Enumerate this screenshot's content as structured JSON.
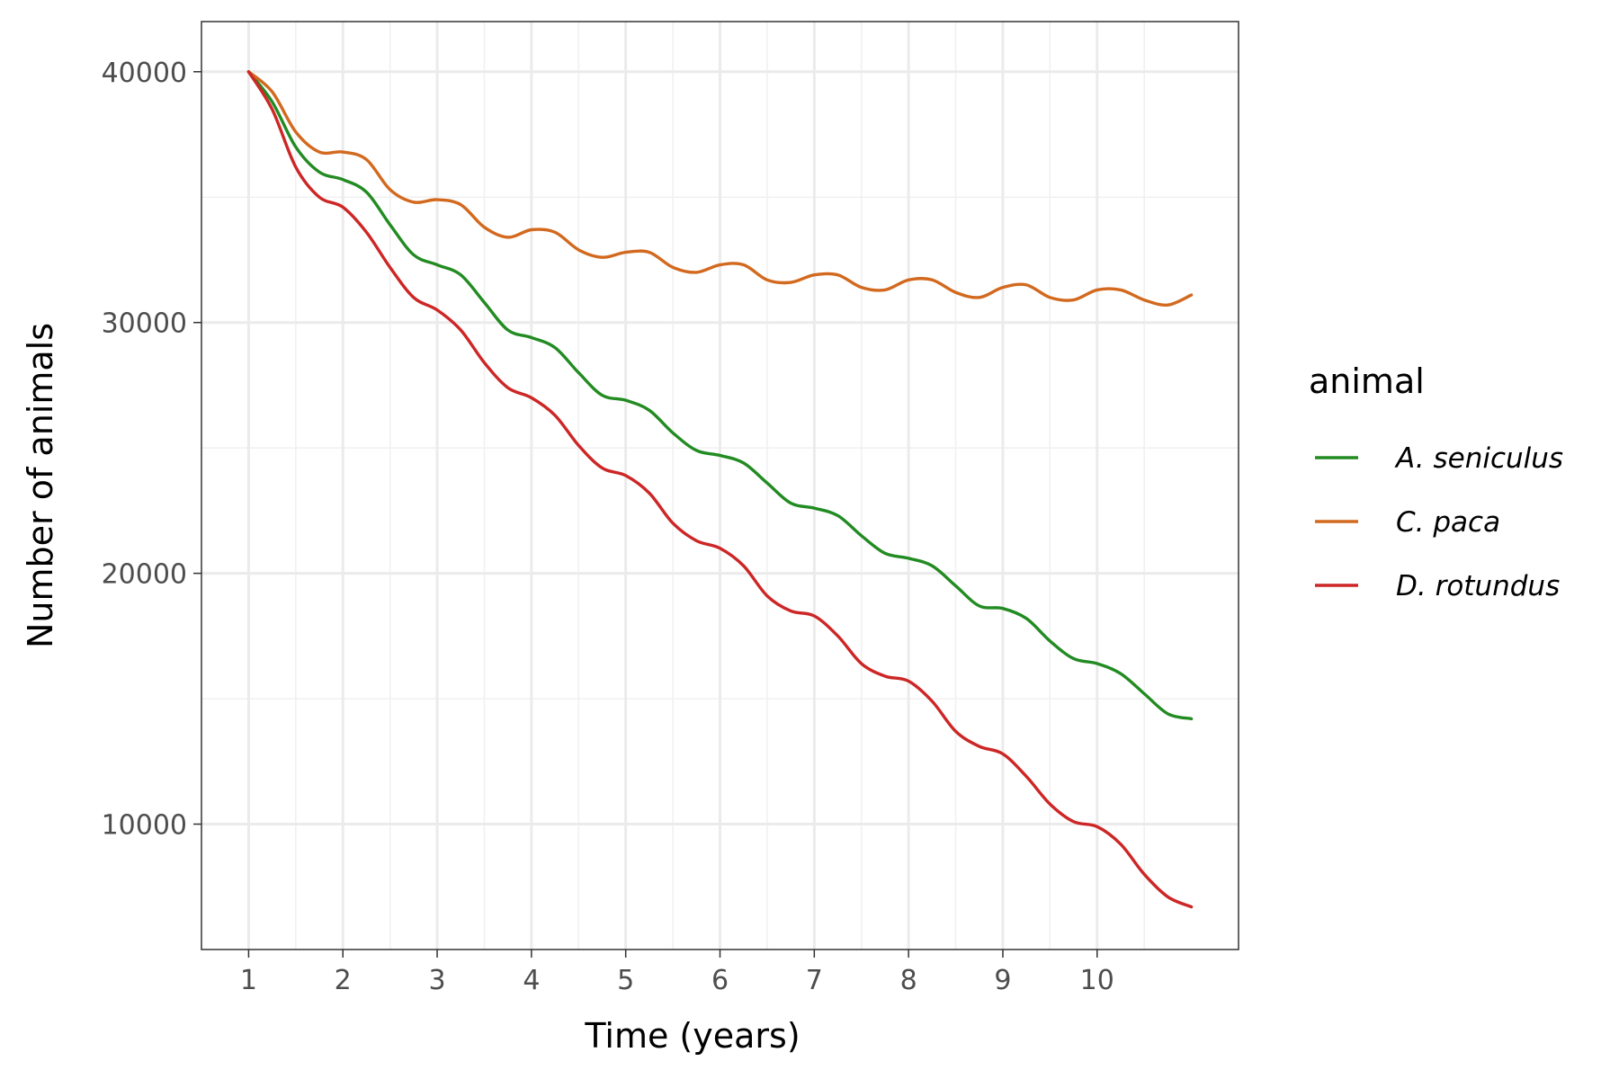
{
  "chart_data": {
    "type": "line",
    "xlabel": "Time (years)",
    "ylabel": "Number of animals",
    "x_ticks": [
      1,
      2,
      3,
      4,
      5,
      6,
      7,
      8,
      9,
      10
    ],
    "y_ticks": [
      10000,
      20000,
      30000,
      40000
    ],
    "xlim": [
      0.5,
      11.5
    ],
    "ylim": [
      5000,
      42000
    ],
    "grid": true,
    "legend": {
      "title": "animal",
      "placement": "right"
    },
    "series": [
      {
        "name": "A. seniculus",
        "color": "#228b22",
        "x": [
          1,
          1.25,
          1.5,
          1.75,
          2,
          2.25,
          2.5,
          2.75,
          3,
          3.25,
          3.5,
          3.75,
          4,
          4.25,
          4.5,
          4.75,
          5,
          5.25,
          5.5,
          5.75,
          6,
          6.25,
          6.5,
          6.75,
          7,
          7.25,
          7.5,
          7.75,
          8,
          8.25,
          8.5,
          8.75,
          9,
          9.25,
          9.5,
          9.75,
          10,
          10.25,
          10.5,
          10.75,
          11
        ],
        "y": [
          40000,
          38800,
          37000,
          36000,
          35700,
          35200,
          33900,
          32700,
          32300,
          31900,
          30800,
          29700,
          29400,
          29000,
          28000,
          27100,
          26900,
          26500,
          25600,
          24900,
          24700,
          24400,
          23600,
          22800,
          22600,
          22300,
          21500,
          20800,
          20600,
          20300,
          19500,
          18700,
          18600,
          18200,
          17300,
          16600,
          16400,
          16000,
          15200,
          14400,
          14200
        ]
      },
      {
        "name": "C. paca",
        "color": "#d2691e",
        "x": [
          1,
          1.25,
          1.5,
          1.75,
          2,
          2.25,
          2.5,
          2.75,
          3,
          3.25,
          3.5,
          3.75,
          4,
          4.25,
          4.5,
          4.75,
          5,
          5.25,
          5.5,
          5.75,
          6,
          6.25,
          6.5,
          6.75,
          7,
          7.25,
          7.5,
          7.75,
          8,
          8.25,
          8.5,
          8.75,
          9,
          9.25,
          9.5,
          9.75,
          10,
          10.25,
          10.5,
          10.75,
          11
        ],
        "y": [
          40000,
          39200,
          37600,
          36800,
          36800,
          36500,
          35300,
          34800,
          34900,
          34700,
          33800,
          33400,
          33700,
          33600,
          32900,
          32600,
          32800,
          32800,
          32200,
          32000,
          32300,
          32300,
          31700,
          31600,
          31900,
          31900,
          31400,
          31300,
          31700,
          31700,
          31200,
          31000,
          31400,
          31500,
          31000,
          30900,
          31300,
          31300,
          30900,
          30700,
          31100
        ]
      },
      {
        "name": "D. rotundus",
        "color": "#cd2626",
        "x": [
          1,
          1.25,
          1.5,
          1.75,
          2,
          2.25,
          2.5,
          2.75,
          3,
          3.25,
          3.5,
          3.75,
          4,
          4.25,
          4.5,
          4.75,
          5,
          5.25,
          5.5,
          5.75,
          6,
          6.25,
          6.5,
          6.75,
          7,
          7.25,
          7.5,
          7.75,
          8,
          8.25,
          8.5,
          8.75,
          9,
          9.25,
          9.5,
          9.75,
          10,
          10.25,
          10.5,
          10.75,
          11
        ],
        "y": [
          40000,
          38500,
          36200,
          35000,
          34600,
          33600,
          32200,
          31000,
          30500,
          29700,
          28400,
          27400,
          27000,
          26300,
          25100,
          24200,
          23900,
          23200,
          22000,
          21300,
          21000,
          20300,
          19100,
          18500,
          18300,
          17500,
          16400,
          15900,
          15700,
          14900,
          13700,
          13100,
          12800,
          11900,
          10800,
          10100,
          9900,
          9200,
          8000,
          7100,
          6700
        ]
      }
    ]
  }
}
